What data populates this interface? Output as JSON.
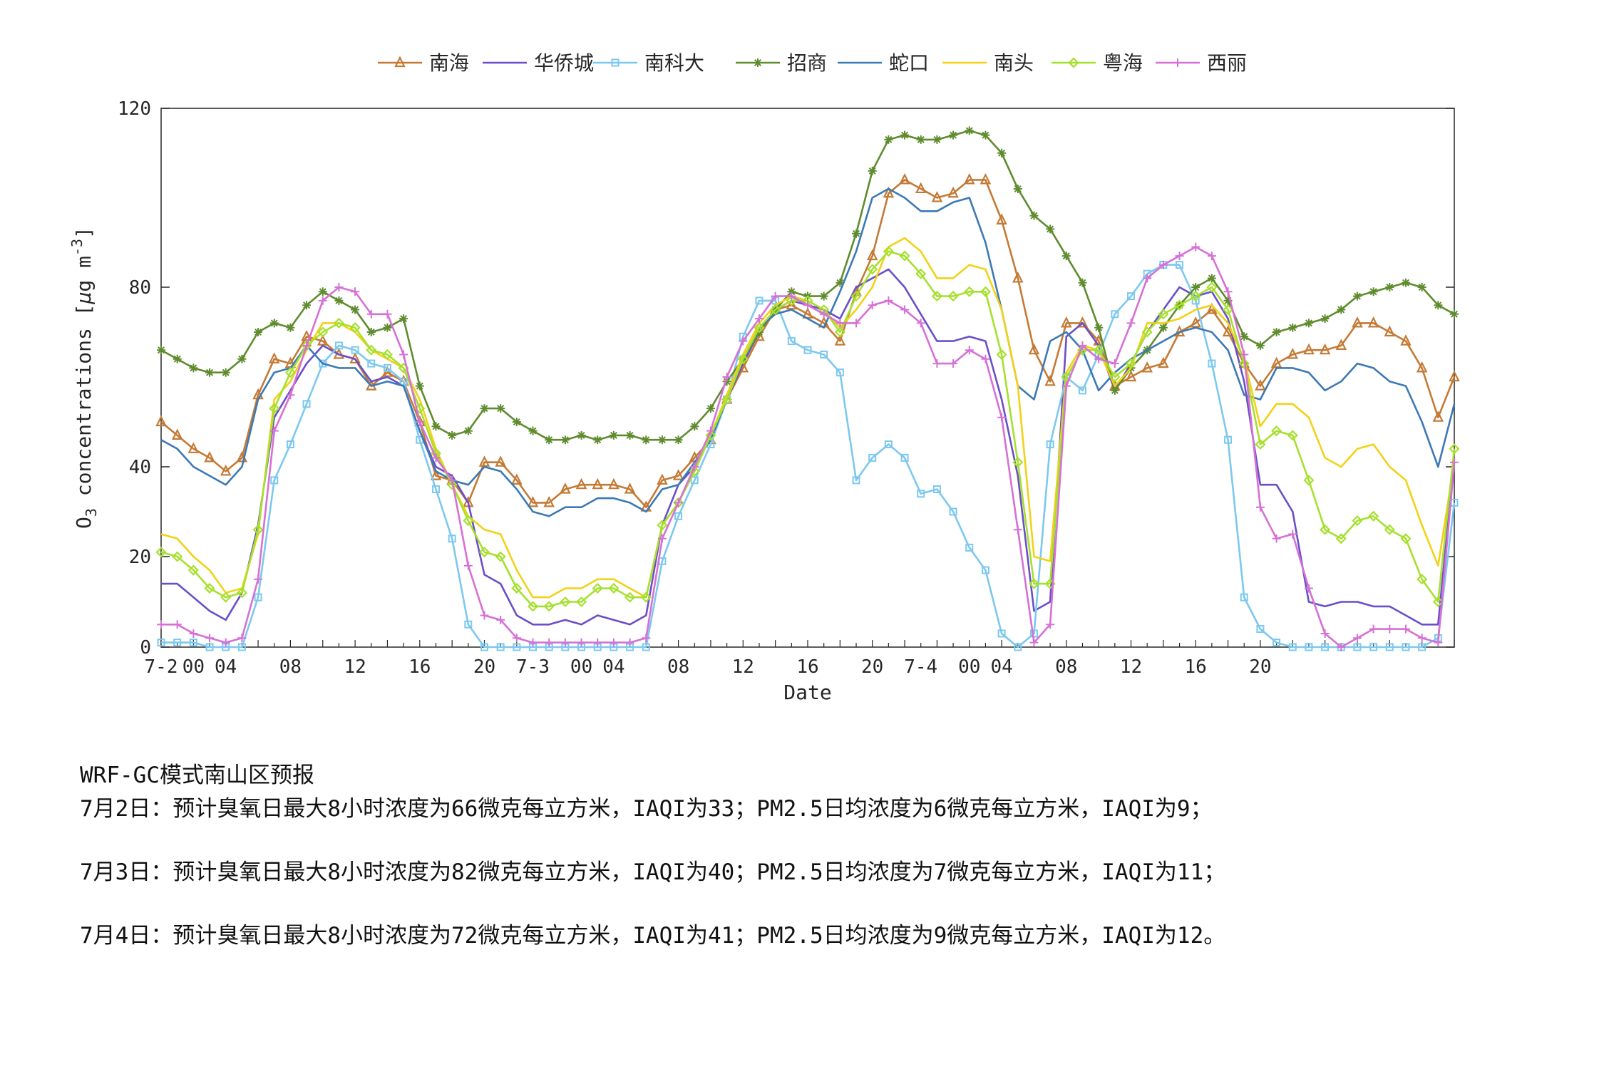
{
  "chart_data": {
    "type": "line",
    "ylabel": "O3 concentrations [μg m-3]",
    "xlabel": "Date",
    "ylim": [
      0,
      120
    ],
    "yticks": [
      0,
      20,
      40,
      80,
      120
    ],
    "xlim": [
      0,
      80
    ],
    "xticks": [
      {
        "x": 0,
        "label": "7-2"
      },
      {
        "x": 2,
        "label": "00"
      },
      {
        "x": 4,
        "label": "04"
      },
      {
        "x": 8,
        "label": "08"
      },
      {
        "x": 12,
        "label": "12"
      },
      {
        "x": 16,
        "label": "16"
      },
      {
        "x": 20,
        "label": "20"
      },
      {
        "x": 23,
        "label": "7-3"
      },
      {
        "x": 26,
        "label": "00"
      },
      {
        "x": 28,
        "label": "04"
      },
      {
        "x": 32,
        "label": "08"
      },
      {
        "x": 36,
        "label": "12"
      },
      {
        "x": 40,
        "label": "16"
      },
      {
        "x": 44,
        "label": "20"
      },
      {
        "x": 47,
        "label": "7-4"
      },
      {
        "x": 50,
        "label": "00"
      },
      {
        "x": 52,
        "label": "04"
      },
      {
        "x": 56,
        "label": "08"
      },
      {
        "x": 60,
        "label": "12"
      },
      {
        "x": 64,
        "label": "16"
      },
      {
        "x": 68,
        "label": "20"
      }
    ],
    "grid": false,
    "legend": "top",
    "x_start": 0,
    "series": [
      {
        "name": "南海",
        "color": "#C47A35",
        "marker": "triangle",
        "values": [
          50,
          47,
          44,
          42,
          39,
          42,
          56,
          64,
          63,
          69,
          68,
          65,
          64,
          58,
          61,
          59,
          50,
          38,
          37,
          32,
          41,
          41,
          37,
          32,
          32,
          35,
          36,
          36,
          36,
          35,
          31,
          37,
          38,
          42,
          46,
          55,
          62,
          69,
          75,
          76,
          74,
          72,
          68,
          79,
          87,
          101,
          104,
          102,
          100,
          101,
          104,
          104,
          95,
          82,
          66,
          59,
          72,
          72,
          68,
          58,
          60,
          62,
          63,
          70,
          72,
          75,
          70,
          63,
          58,
          63,
          65,
          66,
          66,
          67,
          72,
          72,
          70,
          68,
          62,
          51,
          60
        ]
      },
      {
        "name": "华侨城",
        "color": "#6A4FC9",
        "marker": "none",
        "values": [
          14,
          14,
          11,
          8,
          6,
          12,
          27,
          51,
          57,
          63,
          67,
          65,
          64,
          59,
          60,
          58,
          48,
          40,
          38,
          32,
          16,
          14,
          7,
          5,
          5,
          6,
          5,
          7,
          6,
          5,
          7,
          27,
          36,
          40,
          47,
          55,
          63,
          70,
          75,
          77,
          76,
          75,
          73,
          80,
          82,
          84,
          80,
          74,
          68,
          68,
          69,
          68,
          55,
          38,
          8,
          10,
          69,
          72,
          67,
          57,
          63,
          70,
          75,
          80,
          78,
          79,
          73,
          59,
          36,
          36,
          30,
          10,
          9,
          10,
          10,
          9,
          9,
          7,
          5,
          5,
          42
        ]
      },
      {
        "name": "南科大",
        "color": "#7CC8EF",
        "marker": "square",
        "values": [
          1,
          1,
          1,
          0,
          0,
          0,
          11,
          37,
          45,
          54,
          63,
          67,
          66,
          63,
          62,
          59,
          46,
          35,
          24,
          5,
          0,
          0,
          0,
          0,
          0,
          0,
          0,
          0,
          0,
          0,
          0,
          19,
          29,
          37,
          45,
          55,
          69,
          77,
          77,
          68,
          66,
          65,
          61,
          37,
          42,
          45,
          42,
          34,
          35,
          30,
          22,
          17,
          3,
          0,
          3,
          45,
          60,
          57,
          65,
          74,
          78,
          83,
          85,
          85,
          77,
          63,
          46,
          11,
          4,
          1,
          0,
          0,
          0,
          0,
          0,
          0,
          0,
          0,
          0,
          2,
          32
        ]
      },
      {
        "name": "招商",
        "color": "#5F8C2E",
        "marker": "star",
        "values": [
          66,
          64,
          62,
          61,
          61,
          64,
          70,
          72,
          71,
          76,
          79,
          77,
          75,
          70,
          71,
          73,
          58,
          49,
          47,
          48,
          53,
          53,
          50,
          48,
          46,
          46,
          47,
          46,
          47,
          47,
          46,
          46,
          46,
          49,
          53,
          59,
          64,
          70,
          75,
          79,
          78,
          78,
          81,
          92,
          106,
          113,
          114,
          113,
          113,
          114,
          115,
          114,
          110,
          102,
          96,
          93,
          87,
          81,
          71,
          57,
          62,
          66,
          71,
          76,
          80,
          82,
          77,
          69,
          67,
          70,
          71,
          72,
          73,
          75,
          78,
          79,
          80,
          81,
          80,
          76,
          74
        ]
      },
      {
        "name": "蛇口",
        "color": "#3C79B5",
        "marker": "none",
        "values": [
          46,
          44,
          40,
          38,
          36,
          40,
          55,
          61,
          62,
          67,
          63,
          62,
          62,
          58,
          59,
          58,
          48,
          39,
          37,
          36,
          40,
          39,
          35,
          30,
          29,
          31,
          31,
          33,
          33,
          32,
          30,
          35,
          36,
          41,
          46,
          55,
          64,
          71,
          74,
          75,
          73,
          71,
          79,
          88,
          100,
          102,
          100,
          97,
          97,
          99,
          100,
          90,
          75,
          58,
          55,
          68,
          70,
          66,
          57,
          61,
          64,
          66,
          68,
          70,
          71,
          70,
          66,
          56,
          55,
          62,
          62,
          61,
          57,
          59,
          63,
          62,
          59,
          58,
          50,
          40,
          54
        ]
      },
      {
        "name": "南头",
        "color": "#F3D117",
        "marker": "none",
        "values": [
          25,
          24,
          20,
          17,
          12,
          13,
          25,
          55,
          59,
          66,
          72,
          72,
          70,
          66,
          64,
          62,
          55,
          44,
          36,
          29,
          26,
          25,
          17,
          11,
          11,
          13,
          13,
          15,
          15,
          13,
          11,
          27,
          32,
          40,
          47,
          56,
          65,
          72,
          76,
          78,
          77,
          75,
          71,
          75,
          80,
          89,
          91,
          88,
          82,
          82,
          85,
          84,
          75,
          58,
          20,
          19,
          61,
          67,
          66,
          58,
          62,
          72,
          72,
          73,
          75,
          76,
          72,
          64,
          49,
          54,
          54,
          51,
          42,
          40,
          44,
          45,
          40,
          37,
          27,
          18,
          41
        ]
      },
      {
        "name": "粤海",
        "color": "#A6E02E",
        "marker": "diamond",
        "values": [
          21,
          20,
          17,
          13,
          11,
          12,
          26,
          53,
          61,
          67,
          70,
          72,
          71,
          66,
          65,
          62,
          53,
          43,
          36,
          28,
          21,
          20,
          13,
          9,
          9,
          10,
          10,
          13,
          13,
          11,
          11,
          27,
          32,
          39,
          47,
          55,
          64,
          71,
          75,
          77,
          77,
          75,
          70,
          78,
          84,
          88,
          87,
          83,
          78,
          78,
          79,
          79,
          65,
          41,
          14,
          14,
          60,
          66,
          66,
          60,
          63,
          70,
          74,
          76,
          78,
          80,
          75,
          63,
          45,
          48,
          47,
          37,
          26,
          24,
          28,
          29,
          26,
          24,
          15,
          10,
          44
        ]
      },
      {
        "name": "西丽",
        "color": "#D670D6",
        "marker": "plus",
        "values": [
          5,
          5,
          3,
          2,
          1,
          2,
          15,
          48,
          56,
          67,
          77,
          80,
          79,
          74,
          74,
          65,
          50,
          42,
          37,
          18,
          7,
          6,
          2,
          1,
          1,
          1,
          1,
          1,
          1,
          1,
          2,
          24,
          32,
          40,
          48,
          60,
          68,
          73,
          78,
          78,
          76,
          74,
          72,
          72,
          76,
          77,
          75,
          72,
          63,
          63,
          66,
          64,
          51,
          26,
          1,
          5,
          58,
          67,
          64,
          63,
          72,
          82,
          85,
          87,
          89,
          87,
          79,
          65,
          31,
          24,
          25,
          13,
          3,
          0,
          2,
          4,
          4,
          4,
          2,
          1,
          41
        ]
      }
    ]
  },
  "forecast": {
    "title": "WRF-GC模式南山区预报",
    "lines": [
      "7月2日：预计臭氧日最大8小时浓度为66微克每立方米，IAQI为33；PM2.5日均浓度为6微克每立方米，IAQI为9；",
      "7月3日：预计臭氧日最大8小时浓度为82微克每立方米，IAQI为40；PM2.5日均浓度为7微克每立方米，IAQI为11；",
      "7月4日：预计臭氧日最大8小时浓度为72微克每立方米，IAQI为41；PM2.5日均浓度为9微克每立方米，IAQI为12。"
    ]
  }
}
